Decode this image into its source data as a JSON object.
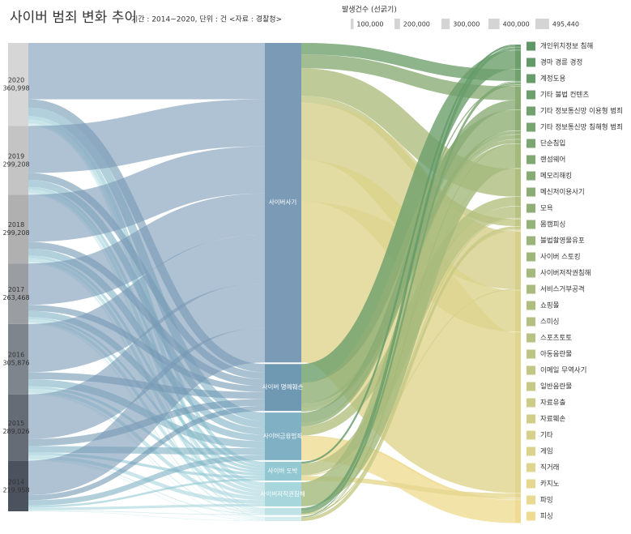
{
  "chart_data": {
    "type": "sankey",
    "title": "사이버 범죄 변화 추이",
    "subtitle": "기간 : 2014~2020, 단위 : 건  <자료 : 경찰청>",
    "legend": {
      "title": "발생건수 (선굵기)",
      "color": "#d4d4d4",
      "ticks": [
        {
          "value": 100000,
          "label": "100,000"
        },
        {
          "value": 200000,
          "label": "200,000"
        },
        {
          "value": 300000,
          "label": "300,000"
        },
        {
          "value": 400000,
          "label": "400,000"
        },
        {
          "value": 495440,
          "label": "495,440"
        }
      ]
    },
    "years": {
      "categories": [
        "2020",
        "2019",
        "2018",
        "2017",
        "2016",
        "2015",
        "2014"
      ],
      "values": [
        360998,
        299208,
        299208,
        263468,
        305876,
        289026,
        219958
      ],
      "value_labels": [
        "360,998",
        "299,208",
        "299,208",
        "263,468",
        "305,876",
        "289,026",
        "219,958"
      ],
      "colors": [
        "#d6d6d6",
        "#c4c4c4",
        "#b0b0b0",
        "#9a9ea3",
        "#7e858d",
        "#656c76",
        "#4d535e"
      ]
    },
    "crime_types": {
      "categories": [
        "사이버사기",
        "사이버 명예훼손",
        "사이버금융범죄",
        "사이버 도박",
        "사이버저작권침해",
        null,
        null
      ],
      "colors": [
        "#7a9ab6",
        "#6f98b2",
        "#7fb0c3",
        "#93c8d3",
        "#a8d6dd",
        "#bfe2e6",
        "#d3ecee"
      ]
    },
    "subtypes": {
      "categories": [
        "개인위치정보 침해",
        "경마 경륜 경정",
        "계정도용",
        "기타 불법 컨텐츠",
        "기타 정보통신망 이용형 범죄",
        "기타 정보통신망 침해형 범죄",
        "단순침입",
        "랜섬웨어",
        "메모리해킹",
        "메신저이용사기",
        "모욕",
        "몸캠피싱",
        "불법촬영물유포",
        "사이버 스토킹",
        "사이버저작권침해",
        "서비스거부공격",
        "쇼핑몰",
        "스미싱",
        "스포츠토토",
        "아동음란물",
        "이메일 무역사기",
        "일반음란물",
        "자료유출",
        "자료훼손",
        "기타",
        "게임",
        "직거래",
        "카지노",
        "파밍",
        "피싱"
      ],
      "colors": [
        "#5e9868",
        "#efdc92"
      ]
    },
    "flows_left": {
      "values": [
        [
          245000,
          36000,
          37000,
          15000,
          18000,
          6000,
          3998
        ],
        [
          205000,
          30000,
          30000,
          12000,
          15000,
          5000,
          2208
        ],
        [
          205000,
          30000,
          30000,
          12000,
          15000,
          5000,
          2208
        ],
        [
          180000,
          26000,
          27000,
          10000,
          14000,
          4000,
          2468
        ],
        [
          210000,
          30000,
          31000,
          12000,
          16000,
          4000,
          2876
        ],
        [
          195000,
          30000,
          29000,
          12000,
          16000,
          4000,
          3026
        ],
        [
          150000,
          22000,
          23000,
          9000,
          11000,
          3000,
          1958
        ]
      ]
    },
    "flows_right": {
      "values": [
        [
          0,
          0,
          0,
          0,
          50000,
          0,
          0,
          0,
          0,
          60000,
          0,
          0,
          0,
          0,
          0,
          0,
          120000,
          0,
          0,
          0,
          30000,
          0,
          0,
          0,
          250000,
          180000,
          700000,
          0,
          0,
          0
        ],
        [
          0,
          0,
          0,
          82000,
          0,
          0,
          0,
          0,
          0,
          0,
          90000,
          0,
          20000,
          15000,
          0,
          0,
          0,
          0,
          0,
          0,
          0,
          0,
          0,
          0,
          0,
          0,
          0,
          0,
          0,
          0
        ],
        [
          0,
          0,
          0,
          0,
          0,
          0,
          0,
          0,
          5000,
          40000,
          0,
          15000,
          0,
          0,
          0,
          0,
          0,
          40000,
          0,
          0,
          0,
          0,
          0,
          0,
          0,
          0,
          0,
          0,
          7000,
          100000
        ],
        [
          0,
          8000,
          0,
          0,
          0,
          0,
          0,
          0,
          0,
          0,
          0,
          0,
          0,
          0,
          0,
          0,
          0,
          0,
          50000,
          0,
          0,
          0,
          0,
          0,
          4000,
          0,
          0,
          20000,
          0,
          0
        ],
        [
          0,
          0,
          0,
          0,
          0,
          0,
          0,
          0,
          0,
          0,
          0,
          0,
          0,
          0,
          105000,
          0,
          0,
          0,
          0,
          0,
          0,
          0,
          0,
          0,
          0,
          0,
          0,
          0,
          0,
          0
        ],
        [
          0,
          0,
          12000,
          0,
          0,
          3000,
          8000,
          1000,
          0,
          0,
          0,
          0,
          0,
          0,
          0,
          1000,
          0,
          0,
          0,
          0,
          0,
          0,
          4000,
          2000,
          0,
          0,
          0,
          0,
          0,
          0
        ],
        [
          742,
          0,
          0,
          0,
          0,
          0,
          0,
          0,
          0,
          0,
          0,
          0,
          0,
          3000,
          0,
          0,
          0,
          0,
          0,
          3000,
          0,
          12000,
          0,
          0,
          0,
          0,
          0,
          0,
          0,
          0
        ]
      ]
    }
  }
}
